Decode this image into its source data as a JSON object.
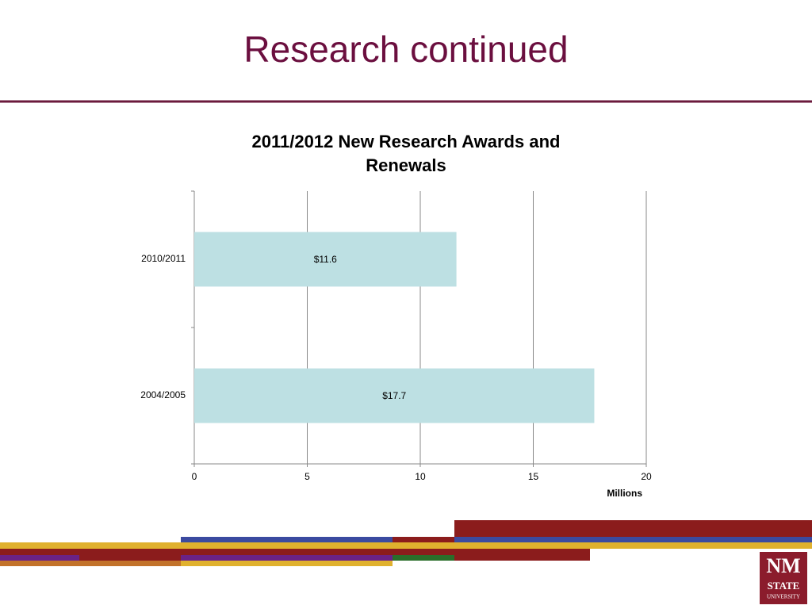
{
  "slide_title": "Research continued",
  "logo": {
    "line1": "NM",
    "line2": "STATE",
    "line3": "UNIVERSITY"
  },
  "chart_data": {
    "type": "bar",
    "orientation": "horizontal",
    "title": "2011/2012 New Research Awards and Renewals",
    "categories": [
      "2010/2011",
      "2004/2005"
    ],
    "values": [
      11.6,
      17.7
    ],
    "value_labels": [
      "$11.6",
      "$17.7"
    ],
    "color": "#bde0e3",
    "xlim": [
      0,
      20
    ],
    "xticks": [
      0,
      5,
      10,
      15,
      20
    ],
    "x_label": "Millions",
    "grid": true
  }
}
